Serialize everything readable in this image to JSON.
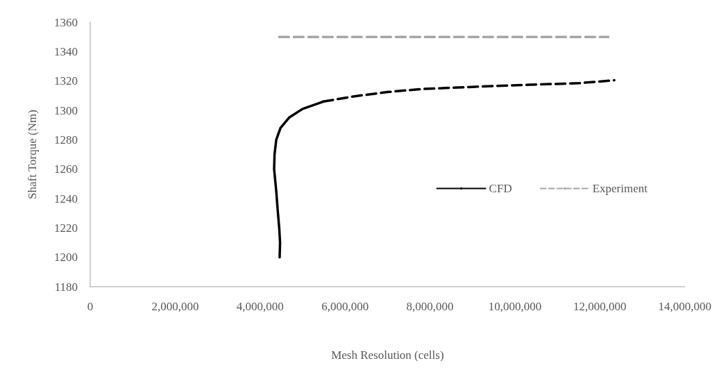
{
  "chart_data": {
    "type": "line",
    "xlabel": "Mesh Resolution (cells)",
    "ylabel": "Shaft Torque (Nm)",
    "xlim": [
      0,
      14000000
    ],
    "xticks": [
      {
        "value": 0,
        "label": "0"
      },
      {
        "value": 2000000,
        "label": "2,000,000"
      },
      {
        "value": 4000000,
        "label": "4,000,000"
      },
      {
        "value": 6000000,
        "label": "6,000,000"
      },
      {
        "value": 8000000,
        "label": "8,000,000"
      },
      {
        "value": 10000000,
        "label": "10,000,000"
      },
      {
        "value": 12000000,
        "label": "12,000,000"
      },
      {
        "value": 14000000,
        "label": "14,000,000"
      }
    ],
    "ylim": [
      1180,
      1360
    ],
    "yticks": [
      1180,
      1200,
      1220,
      1240,
      1260,
      1280,
      1300,
      1320,
      1340,
      1360
    ],
    "grid": false,
    "legend": "right",
    "marker": "none",
    "series": [
      {
        "name": "CFD",
        "color": "#000000",
        "line_style": "solid",
        "x": [
          4460000,
          4470000,
          4450000,
          4420000,
          4380000,
          4330000,
          4340000,
          4380000,
          4480000,
          4680000,
          5000000,
          5490000
        ],
        "values": [
          1200,
          1210,
          1220,
          1230,
          1245,
          1260,
          1270,
          1280,
          1288,
          1295,
          1301,
          1306
        ]
      },
      {
        "color": "#000000",
        "line_style": "dashed",
        "x": [
          5490000,
          6200000,
          7000000,
          7800000,
          9000000,
          10400000,
          11500000,
          12340000
        ],
        "values": [
          1306,
          1309.5,
          1312.5,
          1314.5,
          1316,
          1317.5,
          1318.5,
          1320.5
        ]
      },
      {
        "name": "Experiment",
        "color": "#a5a5a5",
        "line_style": "dashed",
        "x": [
          4450000,
          12200000
        ],
        "values": [
          1350,
          1350
        ]
      }
    ]
  }
}
